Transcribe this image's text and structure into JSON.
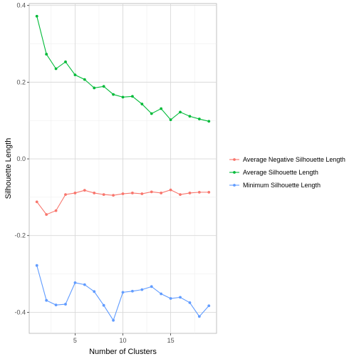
{
  "chart_data": {
    "type": "line",
    "xlabel": "Number of Clusters",
    "ylabel": "Silhouette Length",
    "xlim": [
      0.2,
      19.8
    ],
    "ylim": [
      -0.455,
      0.405
    ],
    "x_ticks": [
      5,
      10,
      15
    ],
    "y_ticks": [
      -0.4,
      -0.2,
      0.0,
      0.2,
      0.4
    ],
    "y_tick_labels": [
      "-0.4",
      "-0.2",
      "0.0",
      "0.2",
      "0.4"
    ],
    "x_tick_labels": [
      "5",
      "10",
      "15"
    ],
    "grid": true,
    "legend_position": "right",
    "x": [
      1,
      2,
      3,
      4,
      5,
      6,
      7,
      8,
      9,
      10,
      11,
      12,
      13,
      14,
      15,
      16,
      17,
      18,
      19
    ],
    "series": [
      {
        "name": "Average Negative Silhouette Length",
        "color": "#F8766D",
        "values": [
          -0.112,
          -0.145,
          -0.135,
          -0.093,
          -0.089,
          -0.082,
          -0.089,
          -0.093,
          -0.095,
          -0.091,
          -0.089,
          -0.091,
          -0.086,
          -0.089,
          -0.081,
          -0.093,
          -0.089,
          -0.087,
          -0.087
        ]
      },
      {
        "name": "Average Silhouette Length",
        "color": "#00BA38",
        "values": [
          0.372,
          0.273,
          0.235,
          0.253,
          0.219,
          0.207,
          0.185,
          0.189,
          0.168,
          0.161,
          0.163,
          0.143,
          0.118,
          0.131,
          0.102,
          0.122,
          0.111,
          0.104,
          0.098
        ]
      },
      {
        "name": "Minimum Silhouette Length",
        "color": "#619CFF",
        "values": [
          -0.278,
          -0.369,
          -0.381,
          -0.379,
          -0.323,
          -0.328,
          -0.346,
          -0.382,
          -0.421,
          -0.348,
          -0.345,
          -0.341,
          -0.333,
          -0.352,
          -0.364,
          -0.361,
          -0.375,
          -0.411,
          -0.383
        ]
      }
    ]
  }
}
